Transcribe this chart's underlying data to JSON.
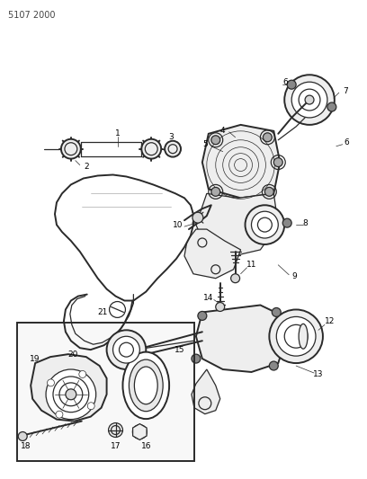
{
  "part_number": "5107 2000",
  "bg_color": "#ffffff",
  "line_color": "#2a2a2a",
  "fig_width": 4.08,
  "fig_height": 5.33,
  "dpi": 100,
  "label_fontsize": 6.5,
  "pn_fontsize": 7,
  "lw": 0.9,
  "lw_thick": 1.4,
  "lw_thin": 0.5,
  "gray_fill": "#d8d8d8",
  "light_fill": "#eeeeee",
  "white_fill": "#ffffff"
}
